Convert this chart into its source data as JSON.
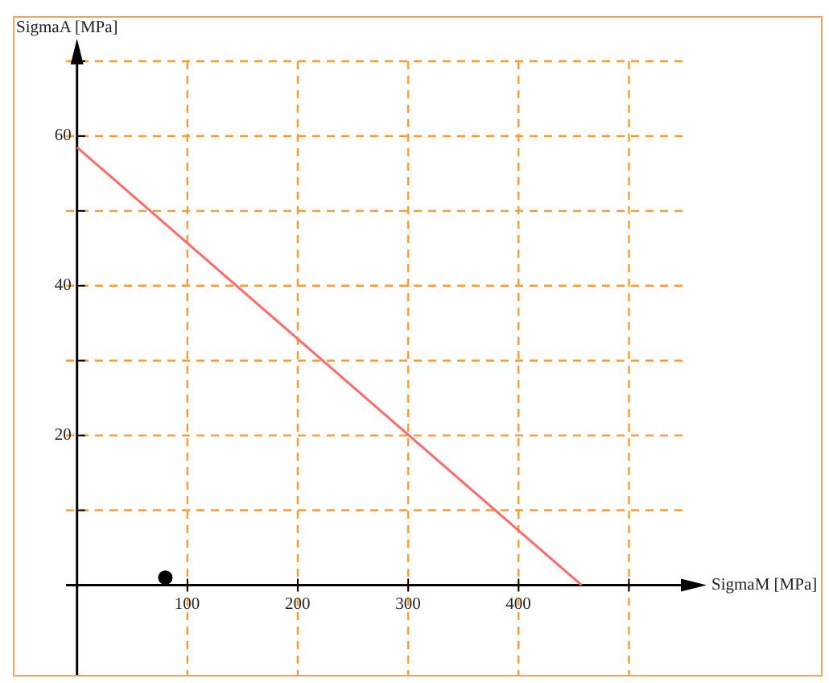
{
  "chart_data": {
    "type": "line",
    "xlabel": "SigmaM [MPa]",
    "ylabel": "SigmaA [MPa]",
    "xlim": [
      -10,
      550
    ],
    "ylim": [
      -12,
      70
    ],
    "xticks": [
      100,
      200,
      300,
      400,
      {
        "value": 500,
        "label": null
      }
    ],
    "yticks": [
      {
        "value": 10,
        "label": null
      },
      20,
      {
        "value": 30,
        "label": null
      },
      40,
      {
        "value": 50,
        "label": null
      },
      60,
      {
        "value": 70,
        "label": null
      }
    ],
    "grid": true,
    "series": [
      {
        "color": "#ff6b6b",
        "x": [
          0,
          457
        ],
        "values": [
          58.5,
          0
        ],
        "marker": "none"
      },
      {
        "type": "scatter",
        "color": "#000000",
        "x": [
          80
        ],
        "values": [
          1
        ],
        "marker": "circle"
      }
    ]
  }
}
